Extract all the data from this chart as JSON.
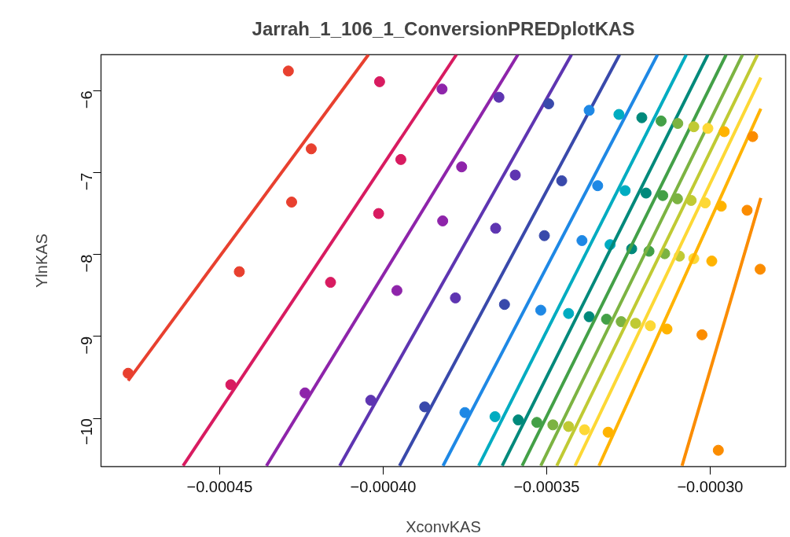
{
  "chart_data": {
    "type": "scatter",
    "title": "Jarrah_1_106_1_ConversionPREDplotKAS",
    "xlabel": "XconvKAS",
    "ylabel": "YlnKAS",
    "xlim": [
      -0.0004863,
      -0.0002769
    ],
    "ylim": [
      -10.59,
      -5.56
    ],
    "xticks": [
      {
        "value": -0.00045,
        "label": "−0.00045"
      },
      {
        "value": -0.0004,
        "label": "−0.00040"
      },
      {
        "value": -0.00035,
        "label": "−0.00035"
      },
      {
        "value": -0.0003,
        "label": "−0.00030"
      }
    ],
    "yticks": [
      {
        "value": -10,
        "label": "−10"
      },
      {
        "value": -9,
        "label": "−9"
      },
      {
        "value": -8,
        "label": "−8"
      },
      {
        "value": -7,
        "label": "−7"
      },
      {
        "value": -6,
        "label": "−6"
      }
    ],
    "grid": false,
    "marker": "circle",
    "series": [
      {
        "color": "#e8402f",
        "x": [
          -0.000429,
          -0.000422,
          -0.000428,
          -0.000444,
          -0.000478
        ],
        "values": [
          -5.76,
          -6.71,
          -7.36,
          -8.21,
          -9.45
        ]
      },
      {
        "type": "line",
        "marker": "none",
        "color": "#e8402f",
        "x": [
          -0.000478,
          -0.0004045
        ],
        "values": [
          -9.54,
          -5.56
        ]
      },
      {
        "color": "#d81b60",
        "x": [
          -0.0004011,
          -0.0003946,
          -0.0004014,
          -0.0004161,
          -0.0004466
        ],
        "values": [
          -5.89,
          -6.84,
          -7.5,
          -8.34,
          -9.59
        ]
      },
      {
        "type": "line",
        "marker": "none",
        "color": "#d81b60",
        "x": [
          -0.0004612,
          -0.0003776
        ],
        "values": [
          -10.58,
          -5.56
        ]
      },
      {
        "color": "#8e24aa",
        "x": [
          -0.000382,
          -0.000376,
          -0.0003818,
          -0.0003958,
          -0.0004239
        ],
        "values": [
          -5.98,
          -6.93,
          -7.59,
          -8.44,
          -9.69
        ]
      },
      {
        "type": "line",
        "marker": "none",
        "color": "#8e24aa",
        "x": [
          -0.0004357,
          -0.0003588
        ],
        "values": [
          -10.58,
          -5.56
        ]
      },
      {
        "color": "#5e35b1",
        "x": [
          -0.0003646,
          -0.0003596,
          -0.0003656,
          -0.0003779,
          -0.0004038
        ],
        "values": [
          -6.08,
          -7.03,
          -7.68,
          -8.53,
          -9.78
        ]
      },
      {
        "type": "line",
        "marker": "none",
        "color": "#5e35b1",
        "x": [
          -0.0004133,
          -0.0003424
        ],
        "values": [
          -10.58,
          -5.56
        ]
      },
      {
        "color": "#3949ab",
        "x": [
          -0.0003494,
          -0.0003454,
          -0.0003507,
          -0.0003629,
          -0.0003873
        ],
        "values": [
          -6.16,
          -7.1,
          -7.77,
          -8.61,
          -9.86
        ]
      },
      {
        "type": "line",
        "marker": "none",
        "color": "#3949ab",
        "x": [
          -0.000395,
          -0.0003277
        ],
        "values": [
          -10.58,
          -5.56
        ]
      },
      {
        "color": "#1e88e5",
        "x": [
          -0.000337,
          -0.0003344,
          -0.0003392,
          -0.0003518,
          -0.000375
        ],
        "values": [
          -6.24,
          -7.16,
          -7.83,
          -8.68,
          -9.93
        ]
      },
      {
        "type": "line",
        "marker": "none",
        "color": "#1e88e5",
        "x": [
          -0.0003817,
          -0.0003161
        ],
        "values": [
          -10.58,
          -5.56
        ]
      },
      {
        "color": "#00acc1",
        "x": [
          -0.0003279,
          -0.000326,
          -0.0003306,
          -0.0003433,
          -0.0003658
        ],
        "values": [
          -6.29,
          -7.22,
          -7.88,
          -8.72,
          -9.98
        ]
      },
      {
        "type": "line",
        "marker": "none",
        "color": "#00acc1",
        "x": [
          -0.0003708,
          -0.0003073
        ],
        "values": [
          -10.58,
          -5.56
        ]
      },
      {
        "color": "#00897b",
        "x": [
          -0.0003209,
          -0.0003196,
          -0.000324,
          -0.000337,
          -0.0003587
        ],
        "values": [
          -6.33,
          -7.25,
          -7.93,
          -8.76,
          -10.02
        ]
      },
      {
        "type": "line",
        "marker": "none",
        "color": "#00897b",
        "x": [
          -0.0003636,
          -0.0003007
        ],
        "values": [
          -10.58,
          -5.56
        ]
      },
      {
        "color": "#43a047",
        "x": [
          -0.000315,
          -0.0003145,
          -0.0003187,
          -0.0003317,
          -0.000353
        ],
        "values": [
          -6.37,
          -7.28,
          -7.96,
          -8.79,
          -10.05
        ]
      },
      {
        "type": "line",
        "marker": "none",
        "color": "#43a047",
        "x": [
          -0.0003575,
          -0.0002951
        ],
        "values": [
          -10.58,
          -5.56
        ]
      },
      {
        "color": "#7cb342",
        "x": [
          -0.0003099,
          -0.00031,
          -0.0003139,
          -0.0003272,
          -0.0003481
        ],
        "values": [
          -6.4,
          -7.32,
          -7.99,
          -8.82,
          -10.08
        ]
      },
      {
        "type": "line",
        "marker": "none",
        "color": "#7cb342",
        "x": [
          -0.0003518,
          -0.0002901
        ],
        "values": [
          -10.58,
          -5.56
        ]
      },
      {
        "color": "#c0ca33",
        "x": [
          -0.000305,
          -0.0003058,
          -0.0003094,
          -0.0003228,
          -0.0003433
        ],
        "values": [
          -6.44,
          -7.34,
          -8.02,
          -8.84,
          -10.1
        ]
      },
      {
        "type": "line",
        "marker": "none",
        "color": "#c0ca33",
        "x": [
          -0.0003469,
          -0.0002855
        ],
        "values": [
          -10.58,
          -5.56
        ]
      },
      {
        "color": "#fdd835",
        "x": [
          -0.0003007,
          -0.0003015,
          -0.000305,
          -0.0003183,
          -0.0003384
        ],
        "values": [
          -6.46,
          -7.37,
          -8.05,
          -8.87,
          -10.14
        ]
      },
      {
        "type": "line",
        "marker": "none",
        "color": "#fdd835",
        "x": [
          -0.0003413,
          -0.0002845
        ],
        "values": [
          -10.58,
          -5.84
        ]
      },
      {
        "color": "#ffb300",
        "x": [
          -0.0002957,
          -0.0002966,
          -0.0002995,
          -0.0003132,
          -0.0003312
        ],
        "values": [
          -6.5,
          -7.41,
          -8.08,
          -8.91,
          -10.17
        ]
      },
      {
        "type": "line",
        "marker": "none",
        "color": "#ffb300",
        "x": [
          -0.000334,
          -0.0002845
        ],
        "values": [
          -10.58,
          -6.22
        ]
      },
      {
        "color": "#fb8c00",
        "x": [
          -0.000287,
          -0.0002887,
          -0.0002847,
          -0.0003025,
          -0.0002975
        ],
        "values": [
          -6.56,
          -7.46,
          -8.18,
          -8.98,
          -10.39
        ]
      },
      {
        "type": "line",
        "marker": "none",
        "color": "#fb8c00",
        "x": [
          -0.0003086,
          -0.0002845
        ],
        "values": [
          -10.58,
          -7.31
        ]
      }
    ]
  }
}
